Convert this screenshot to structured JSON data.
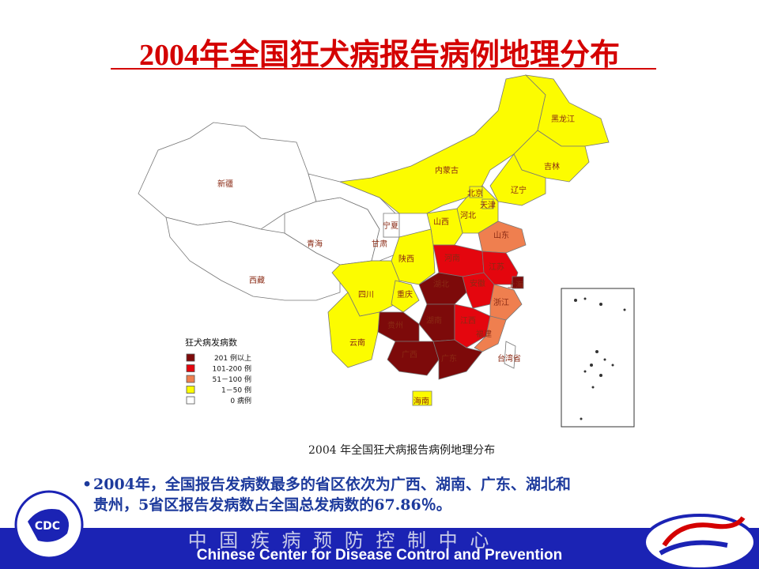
{
  "title": "2004年全国狂犬病报告病例地理分布",
  "map": {
    "caption": "2004 年全国狂犬病报告病例地理分布",
    "legend": {
      "title": "狂犬病发病数",
      "items": [
        {
          "label": "201 例以上",
          "color": "#7d0a0a"
        },
        {
          "label": "101-200 例",
          "color": "#e4060e"
        },
        {
          "label": "51－100 例",
          "color": "#ef7f4f"
        },
        {
          "label": "1－50 例",
          "color": "#fcfc00"
        },
        {
          "label": "0 病例",
          "color": "#ffffff"
        }
      ]
    },
    "provinces": [
      {
        "name": "新疆",
        "color": "#ffffff"
      },
      {
        "name": "西藏",
        "color": "#ffffff"
      },
      {
        "name": "青海",
        "color": "#ffffff"
      },
      {
        "name": "甘肃",
        "color": "#ffffff"
      },
      {
        "name": "宁夏",
        "color": "#ffffff"
      },
      {
        "name": "内蒙古",
        "color": "#fcfc00"
      },
      {
        "name": "黑龙江",
        "color": "#fcfc00"
      },
      {
        "name": "吉林",
        "color": "#fcfc00"
      },
      {
        "name": "辽宁",
        "color": "#fcfc00"
      },
      {
        "name": "河北",
        "color": "#fcfc00"
      },
      {
        "name": "北京",
        "color": "#fcfc00"
      },
      {
        "name": "天津",
        "color": "#fcfc00"
      },
      {
        "name": "山西",
        "color": "#fcfc00"
      },
      {
        "name": "陕西",
        "color": "#fcfc00"
      },
      {
        "name": "山东",
        "color": "#ef7f4f"
      },
      {
        "name": "河南",
        "color": "#e4060e"
      },
      {
        "name": "江苏",
        "color": "#e4060e"
      },
      {
        "name": "安徽",
        "color": "#e4060e"
      },
      {
        "name": "上海",
        "color": "#7d0a0a"
      },
      {
        "name": "浙江",
        "color": "#ef7f4f"
      },
      {
        "name": "湖北",
        "color": "#7d0a0a"
      },
      {
        "name": "四川",
        "color": "#fcfc00"
      },
      {
        "name": "重庆",
        "color": "#fcfc00"
      },
      {
        "name": "湖南",
        "color": "#7d0a0a"
      },
      {
        "name": "江西",
        "color": "#e4060e"
      },
      {
        "name": "福建",
        "color": "#ef7f4f"
      },
      {
        "name": "贵州",
        "color": "#7d0a0a"
      },
      {
        "name": "云南",
        "color": "#fcfc00"
      },
      {
        "name": "广西",
        "color": "#7d0a0a"
      },
      {
        "name": "广东",
        "color": "#7d0a0a"
      },
      {
        "name": "台湾省",
        "color": "#ffffff"
      },
      {
        "name": "海南",
        "color": "#fcfc00"
      }
    ]
  },
  "bullet": {
    "lines": [
      "2004年，全国报告发病数最多的省区依次为广西、湖南、广东、湖北和",
      "贵州，5省区报告发病数占全国总发病数的67.86％。"
    ]
  },
  "footer": {
    "chinese": "中 国 疾 病 预 防 控 制 中 心",
    "english": "Chinese Center for Disease Control and Prevention",
    "logo": "CDC"
  }
}
